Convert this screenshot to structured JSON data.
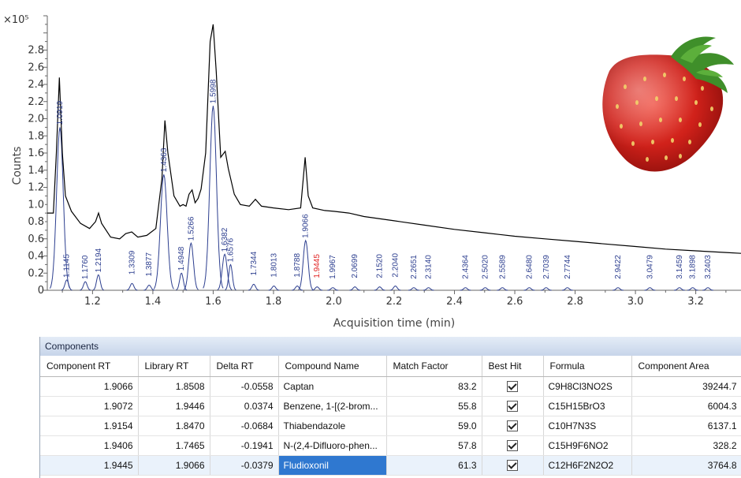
{
  "chart_data": {
    "type": "line",
    "xlabel": "Acquisition time (min)",
    "ylabel": "Counts",
    "y_multiplier": "×10⁵",
    "xlim": [
      1.05,
      3.35
    ],
    "ylim": [
      0,
      3.2
    ],
    "x_ticks": [
      "1.2",
      "1.4",
      "1.6",
      "1.8",
      "2.0",
      "2.2",
      "2.4",
      "2.6",
      "2.8",
      "3.0",
      "3.2"
    ],
    "y_ticks": [
      "0",
      "0.2",
      "0.4",
      "0.6",
      "0.8",
      "1.0",
      "1.2",
      "1.4",
      "1.6",
      "1.8",
      "2.0",
      "2.2",
      "2.4",
      "2.6",
      "2.8"
    ],
    "tic_series": {
      "name": "TIC",
      "color": "#000000",
      "points": [
        [
          1.05,
          0.9
        ],
        [
          1.07,
          0.9
        ],
        [
          1.08,
          1.6
        ],
        [
          1.09,
          2.48
        ],
        [
          1.1,
          1.6
        ],
        [
          1.11,
          1.1
        ],
        [
          1.13,
          0.92
        ],
        [
          1.16,
          0.78
        ],
        [
          1.19,
          0.72
        ],
        [
          1.21,
          0.8
        ],
        [
          1.22,
          0.9
        ],
        [
          1.23,
          0.78
        ],
        [
          1.26,
          0.62
        ],
        [
          1.29,
          0.6
        ],
        [
          1.31,
          0.66
        ],
        [
          1.33,
          0.68
        ],
        [
          1.35,
          0.62
        ],
        [
          1.38,
          0.64
        ],
        [
          1.41,
          0.72
        ],
        [
          1.43,
          1.3
        ],
        [
          1.44,
          1.98
        ],
        [
          1.45,
          1.6
        ],
        [
          1.47,
          1.1
        ],
        [
          1.49,
          0.98
        ],
        [
          1.5,
          1.0
        ],
        [
          1.51,
          0.98
        ],
        [
          1.52,
          1.12
        ],
        [
          1.53,
          1.17
        ],
        [
          1.54,
          1.02
        ],
        [
          1.55,
          1.07
        ],
        [
          1.56,
          1.18
        ],
        [
          1.575,
          1.6
        ],
        [
          1.59,
          2.9
        ],
        [
          1.6,
          3.1
        ],
        [
          1.61,
          2.55
        ],
        [
          1.625,
          1.55
        ],
        [
          1.64,
          1.62
        ],
        [
          1.65,
          1.42
        ],
        [
          1.67,
          1.12
        ],
        [
          1.69,
          1.0
        ],
        [
          1.72,
          0.98
        ],
        [
          1.74,
          1.06
        ],
        [
          1.76,
          0.98
        ],
        [
          1.8,
          0.96
        ],
        [
          1.85,
          0.94
        ],
        [
          1.89,
          0.96
        ],
        [
          1.905,
          1.55
        ],
        [
          1.915,
          1.1
        ],
        [
          1.93,
          0.96
        ],
        [
          1.97,
          0.93
        ],
        [
          2.0,
          0.92
        ],
        [
          2.05,
          0.9
        ],
        [
          2.1,
          0.86
        ],
        [
          2.2,
          0.81
        ],
        [
          2.3,
          0.76
        ],
        [
          2.4,
          0.71
        ],
        [
          2.5,
          0.67
        ],
        [
          2.6,
          0.63
        ],
        [
          2.7,
          0.6
        ],
        [
          2.8,
          0.57
        ],
        [
          2.9,
          0.54
        ],
        [
          3.0,
          0.51
        ],
        [
          3.1,
          0.48
        ],
        [
          3.2,
          0.46
        ],
        [
          3.3,
          0.44
        ],
        [
          3.35,
          0.43
        ]
      ]
    },
    "component_peaks": [
      {
        "rt": 1.0919,
        "label": "1.0919",
        "height": 1.9
      },
      {
        "rt": 1.1145,
        "label": "1.1145",
        "height": 0.12
      },
      {
        "rt": 1.176,
        "label": "1.1760",
        "height": 0.1
      },
      {
        "rt": 1.2194,
        "label": "1.2194",
        "height": 0.18
      },
      {
        "rt": 1.3309,
        "label": "1.3309",
        "height": 0.08
      },
      {
        "rt": 1.3877,
        "label": "1.3877",
        "height": 0.06
      },
      {
        "rt": 1.4363,
        "label": "1.4363",
        "height": 1.35
      },
      {
        "rt": 1.4948,
        "label": "1.4948",
        "height": 0.2
      },
      {
        "rt": 1.5266,
        "label": "1.5266",
        "height": 0.55
      },
      {
        "rt": 1.5998,
        "label": "1.5998",
        "height": 2.15
      },
      {
        "rt": 1.6382,
        "label": "1.6382",
        "height": 0.42
      },
      {
        "rt": 1.6576,
        "label": "1.6576",
        "height": 0.3
      },
      {
        "rt": 1.7344,
        "label": "1.7344",
        "height": 0.07
      },
      {
        "rt": 1.8013,
        "label": "1.8013",
        "height": 0.05
      },
      {
        "rt": 1.8788,
        "label": "1.8788",
        "height": 0.05
      },
      {
        "rt": 1.9066,
        "label": "1.9066",
        "height": 0.58
      },
      {
        "rt": 1.9445,
        "label": "1.9445",
        "height": 0.04,
        "selected": true
      },
      {
        "rt": 1.9967,
        "label": "1.9967",
        "height": 0.03
      },
      {
        "rt": 2.0699,
        "label": "2.0699",
        "height": 0.04
      },
      {
        "rt": 2.152,
        "label": "2.1520",
        "height": 0.04
      },
      {
        "rt": 2.204,
        "label": "2.2040",
        "height": 0.05
      },
      {
        "rt": 2.2651,
        "label": "2.2651",
        "height": 0.03
      },
      {
        "rt": 2.314,
        "label": "2.3140",
        "height": 0.03
      },
      {
        "rt": 2.4364,
        "label": "2.4364",
        "height": 0.03
      },
      {
        "rt": 2.502,
        "label": "2.5020",
        "height": 0.03
      },
      {
        "rt": 2.5589,
        "label": "2.5589",
        "height": 0.03
      },
      {
        "rt": 2.648,
        "label": "2.6480",
        "height": 0.03
      },
      {
        "rt": 2.7039,
        "label": "2.7039",
        "height": 0.03
      },
      {
        "rt": 2.7744,
        "label": "2.7744",
        "height": 0.03
      },
      {
        "rt": 2.9422,
        "label": "2.9422",
        "height": 0.03
      },
      {
        "rt": 3.0479,
        "label": "3.0479",
        "height": 0.03
      },
      {
        "rt": 3.1459,
        "label": "3.1459",
        "height": 0.03
      },
      {
        "rt": 3.1898,
        "label": "3.1898",
        "height": 0.03
      },
      {
        "rt": 3.2403,
        "label": "3.2403",
        "height": 0.03
      }
    ],
    "colors": {
      "tic": "#000000",
      "components": "#2c3e8f",
      "selected_label": "#e02020"
    }
  },
  "photo": {
    "icon": "strawberry-photo"
  },
  "components_panel": {
    "title": "Components",
    "columns": [
      "Component RT",
      "Library RT",
      "Delta RT",
      "Compound Name",
      "Match Factor",
      "Best Hit",
      "Formula",
      "Component Area"
    ],
    "rows": [
      {
        "component_rt": "1.9066",
        "library_rt": "1.8508",
        "delta_rt": "-0.0558",
        "compound": "Captan",
        "match_factor": "83.2",
        "best_hit": true,
        "formula": "C9H8Cl3NO2S",
        "area": "39244.7"
      },
      {
        "component_rt": "1.9072",
        "library_rt": "1.9446",
        "delta_rt": "0.0374",
        "compound": "Benzene, 1-[(2-brom...",
        "match_factor": "55.8",
        "best_hit": true,
        "formula": "C15H15BrO3",
        "area": "6004.3"
      },
      {
        "component_rt": "1.9154",
        "library_rt": "1.8470",
        "delta_rt": "-0.0684",
        "compound": "Thiabendazole",
        "match_factor": "59.0",
        "best_hit": true,
        "formula": "C10H7N3S",
        "area": "6137.1"
      },
      {
        "component_rt": "1.9406",
        "library_rt": "1.7465",
        "delta_rt": "-0.1941",
        "compound": "N-(2,4-Difluoro-phen...",
        "match_factor": "57.8",
        "best_hit": true,
        "formula": "C15H9F6NO2",
        "area": "328.2"
      },
      {
        "component_rt": "1.9445",
        "library_rt": "1.9066",
        "delta_rt": "-0.0379",
        "compound": "Fludioxonil",
        "match_factor": "61.3",
        "best_hit": true,
        "formula": "C12H6F2N2O2",
        "area": "3764.8",
        "selected": true
      }
    ]
  }
}
